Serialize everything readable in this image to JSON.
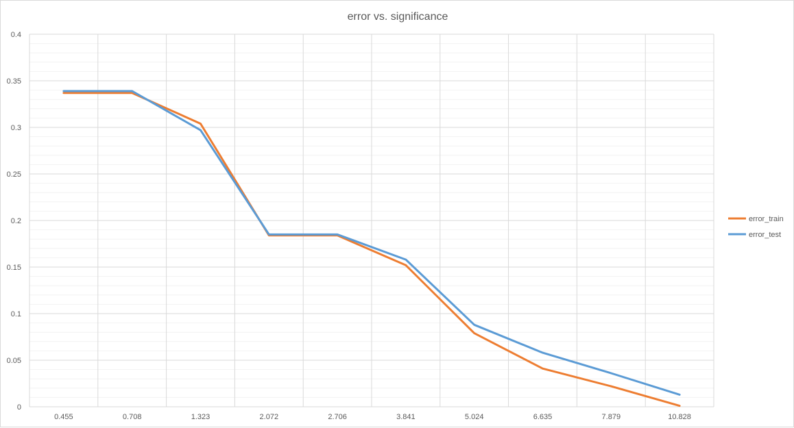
{
  "chart_data": {
    "type": "line",
    "title": "error vs. significance",
    "xlabel": "",
    "ylabel": "",
    "categories": [
      "0.455",
      "0.708",
      "1.323",
      "2.072",
      "2.706",
      "3.841",
      "5.024",
      "6.635",
      "7.879",
      "10.828"
    ],
    "series": [
      {
        "name": "error_train",
        "color": "#ED7D31",
        "values": [
          0.337,
          0.337,
          0.304,
          0.184,
          0.184,
          0.152,
          0.079,
          0.041,
          0.022,
          0.001
        ]
      },
      {
        "name": "error_test",
        "color": "#5B9BD5",
        "values": [
          0.339,
          0.339,
          0.297,
          0.185,
          0.185,
          0.158,
          0.088,
          0.058,
          0.036,
          0.013
        ]
      }
    ],
    "ylim": [
      0,
      0.4
    ],
    "yticks": [
      "0",
      "0.05",
      "0.1",
      "0.15",
      "0.2",
      "0.25",
      "0.3",
      "0.35",
      "0.4"
    ],
    "grid": true,
    "legend_position": "right"
  }
}
